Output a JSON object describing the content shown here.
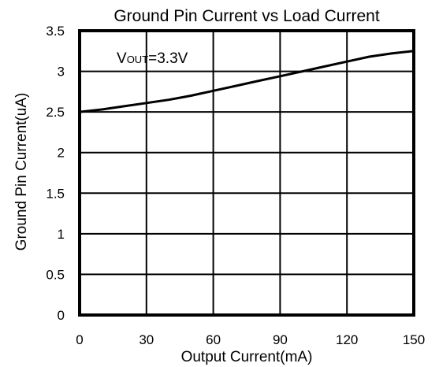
{
  "chart_data": {
    "type": "line",
    "title": "Ground Pin Current vs Load Current",
    "xlabel": "Output Current(mA)",
    "ylabel": "Ground Pin Current(uA)",
    "xlim": [
      0,
      150
    ],
    "ylim": [
      0,
      3.5
    ],
    "x_ticks": [
      "0",
      "30",
      "60",
      "90",
      "120",
      "150"
    ],
    "y_ticks": [
      "0",
      "0.5",
      "1",
      "1.5",
      "2",
      "2.5",
      "3",
      "3.5"
    ],
    "grid": true,
    "annotation": {
      "main": "V",
      "subscript": "OUT",
      "suffix": "=3.3V"
    },
    "series": [
      {
        "x": [
          0,
          10,
          20,
          30,
          40,
          50,
          60,
          70,
          80,
          90,
          100,
          110,
          120,
          130,
          140,
          150
        ],
        "y": [
          2.5,
          2.53,
          2.57,
          2.61,
          2.65,
          2.7,
          2.76,
          2.82,
          2.88,
          2.94,
          3.0,
          3.06,
          3.12,
          3.18,
          3.22,
          3.25
        ],
        "color": "#000000"
      }
    ]
  }
}
